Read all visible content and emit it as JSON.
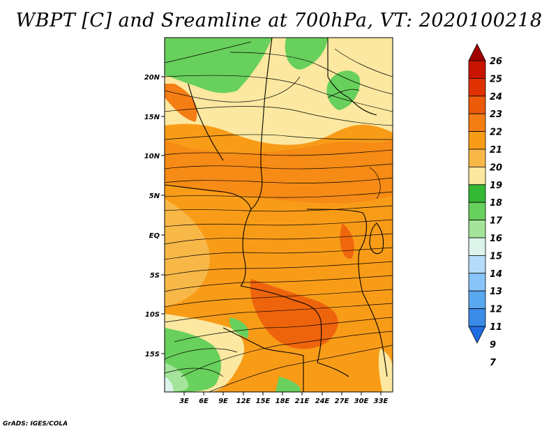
{
  "title": "WBPT [C] and Sreamline at 700hPa, VT: 2020100218",
  "credit": "GrADS: IGES/COLA",
  "map": {
    "lat_labels": [
      "20N",
      "15N",
      "10N",
      "5N",
      "EQ",
      "5S",
      "10S",
      "15S"
    ],
    "lon_labels": [
      "3E",
      "6E",
      "9E",
      "12E",
      "15E",
      "18E",
      "21E",
      "24E",
      "27E",
      "30E",
      "33E"
    ]
  },
  "colorbar": {
    "levels": [
      "26",
      "25",
      "24",
      "23",
      "22",
      "21",
      "20",
      "19",
      "18",
      "17",
      "16",
      "15",
      "14",
      "13",
      "12",
      "11",
      "9",
      "7"
    ],
    "colors": [
      "#a00000",
      "#c81400",
      "#e03200",
      "#ec5a0a",
      "#f47e14",
      "#f89c18",
      "#f8b848",
      "#fce8a0",
      "#34b834",
      "#68d05c",
      "#a4e49a",
      "#dcf4ea",
      "#b4dcf8",
      "#88c4f8",
      "#5aa8f0",
      "#3a8ce8",
      "#1e6ce0"
    ]
  }
}
